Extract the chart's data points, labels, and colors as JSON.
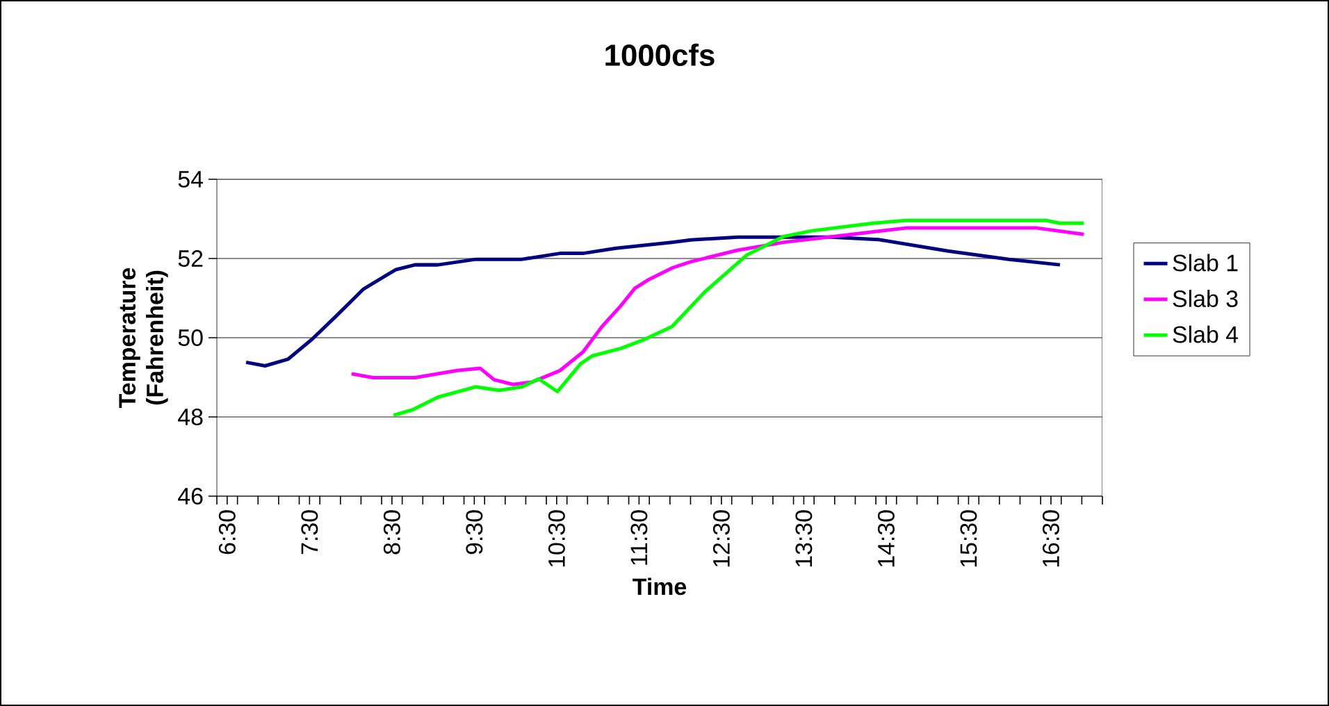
{
  "chart_data": {
    "type": "line",
    "title": "1000cfs",
    "xlabel": "Time",
    "ylabel": "Temperature (Fahrenheit)",
    "xlim": [
      6.375,
      17.125
    ],
    "ylim": [
      46,
      54
    ],
    "yticks": [
      46,
      48,
      50,
      52,
      54
    ],
    "xticks": [
      {
        "value": 6.5,
        "label": "6:30"
      },
      {
        "value": 7.5,
        "label": "7:30"
      },
      {
        "value": 8.5,
        "label": "8:30"
      },
      {
        "value": 9.5,
        "label": "9:30"
      },
      {
        "value": 10.5,
        "label": "10:30"
      },
      {
        "value": 11.5,
        "label": "11:30"
      },
      {
        "value": 12.5,
        "label": "12:30"
      },
      {
        "value": 13.5,
        "label": "13:30"
      },
      {
        "value": 14.5,
        "label": "14:30"
      },
      {
        "value": 15.5,
        "label": "15:30"
      },
      {
        "value": 16.5,
        "label": "16:30"
      },
      {
        "value": 6.375,
        "label": null
      },
      {
        "value": 6.625,
        "label": null
      },
      {
        "value": 6.875,
        "label": null
      },
      {
        "value": 7.125,
        "label": null
      },
      {
        "value": 7.375,
        "label": null
      },
      {
        "value": 7.625,
        "label": null
      },
      {
        "value": 7.875,
        "label": null
      },
      {
        "value": 8.125,
        "label": null
      },
      {
        "value": 8.375,
        "label": null
      },
      {
        "value": 8.625,
        "label": null
      },
      {
        "value": 8.875,
        "label": null
      },
      {
        "value": 9.125,
        "label": null
      },
      {
        "value": 9.375,
        "label": null
      },
      {
        "value": 9.625,
        "label": null
      },
      {
        "value": 9.875,
        "label": null
      },
      {
        "value": 10.125,
        "label": null
      },
      {
        "value": 10.375,
        "label": null
      },
      {
        "value": 10.625,
        "label": null
      },
      {
        "value": 10.875,
        "label": null
      },
      {
        "value": 11.125,
        "label": null
      },
      {
        "value": 11.375,
        "label": null
      },
      {
        "value": 11.625,
        "label": null
      },
      {
        "value": 11.875,
        "label": null
      },
      {
        "value": 12.125,
        "label": null
      },
      {
        "value": 12.375,
        "label": null
      },
      {
        "value": 12.625,
        "label": null
      },
      {
        "value": 12.875,
        "label": null
      },
      {
        "value": 13.125,
        "label": null
      },
      {
        "value": 13.375,
        "label": null
      },
      {
        "value": 13.625,
        "label": null
      },
      {
        "value": 13.875,
        "label": null
      },
      {
        "value": 14.125,
        "label": null
      },
      {
        "value": 14.375,
        "label": null
      },
      {
        "value": 14.625,
        "label": null
      },
      {
        "value": 14.875,
        "label": null
      },
      {
        "value": 15.125,
        "label": null
      },
      {
        "value": 15.375,
        "label": null
      },
      {
        "value": 15.625,
        "label": null
      },
      {
        "value": 15.875,
        "label": null
      },
      {
        "value": 16.125,
        "label": null
      },
      {
        "value": 16.375,
        "label": null
      },
      {
        "value": 16.625,
        "label": null
      },
      {
        "value": 16.875,
        "label": null
      },
      {
        "value": 17.125,
        "label": null
      }
    ],
    "grid": "y",
    "legend": "right",
    "marker": "none",
    "line_style": "solid",
    "series": [
      {
        "name": "Slab 1",
        "color": "#000080",
        "x": [
          6.73,
          6.96,
          7.24,
          7.53,
          7.81,
          8.15,
          8.38,
          8.55,
          8.78,
          9.06,
          9.52,
          10.08,
          10.54,
          10.82,
          11.22,
          11.9,
          12.13,
          12.7,
          13.83,
          14.4,
          15.25,
          15.99,
          16.61
        ],
        "values": [
          49.38,
          49.29,
          49.46,
          49.96,
          50.52,
          51.22,
          51.51,
          51.72,
          51.84,
          51.84,
          51.98,
          51.98,
          52.13,
          52.13,
          52.26,
          52.41,
          52.47,
          52.54,
          52.54,
          52.48,
          52.19,
          51.98,
          51.84
        ]
      },
      {
        "name": "Slab 3",
        "color": "#ff00ff",
        "x": [
          8.01,
          8.27,
          8.78,
          9.29,
          9.57,
          9.74,
          9.97,
          10.2,
          10.54,
          10.82,
          11.05,
          11.28,
          11.45,
          11.62,
          11.9,
          12.13,
          12.7,
          13.26,
          14.12,
          14.74,
          16.33,
          16.9
        ],
        "values": [
          49.09,
          48.99,
          48.99,
          49.17,
          49.23,
          48.94,
          48.82,
          48.88,
          49.17,
          49.64,
          50.28,
          50.81,
          51.25,
          51.47,
          51.76,
          51.92,
          52.21,
          52.41,
          52.62,
          52.77,
          52.77,
          52.61
        ]
      },
      {
        "name": "Slab 4",
        "color": "#00ff00",
        "x": [
          8.52,
          8.75,
          9.06,
          9.52,
          9.8,
          10.08,
          10.28,
          10.51,
          10.79,
          10.93,
          11.28,
          11.56,
          11.9,
          12.3,
          12.81,
          13.26,
          13.6,
          14.34,
          14.74,
          16.44,
          16.61,
          16.9
        ],
        "values": [
          48.04,
          48.18,
          48.5,
          48.76,
          48.67,
          48.76,
          48.96,
          48.64,
          49.34,
          49.54,
          49.73,
          49.95,
          50.28,
          51.16,
          52.09,
          52.56,
          52.7,
          52.89,
          52.96,
          52.96,
          52.89,
          52.89
        ]
      }
    ]
  }
}
